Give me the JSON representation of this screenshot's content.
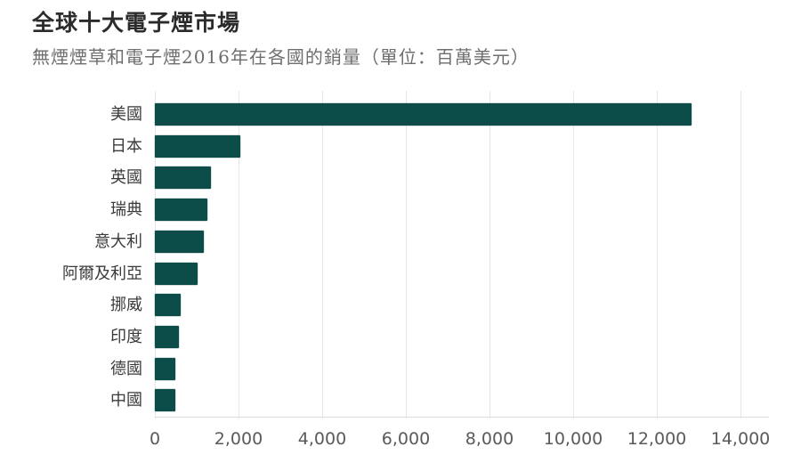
{
  "chart_data": {
    "type": "bar",
    "orientation": "horizontal",
    "title": "全球十大電子煙市場",
    "subtitle": "無煙煙草和電子煙2016年在各國的銷量（單位：百萬美元）",
    "xlabel": "",
    "ylabel": "",
    "xlim": [
      0,
      14500
    ],
    "grid": true,
    "bar_color": "#0c4d4a",
    "categories": [
      "美國",
      "日本",
      "英國",
      "瑞典",
      "意大利",
      "阿爾及利亞",
      "挪威",
      "印度",
      "德國",
      "中國"
    ],
    "values": [
      12830,
      2050,
      1340,
      1260,
      1170,
      1020,
      620,
      570,
      490,
      480
    ],
    "ticks": [
      0,
      2000,
      4000,
      6000,
      8000,
      10000,
      12000,
      14000
    ],
    "tick_labels": [
      "0",
      "2,000",
      "4,000",
      "6,000",
      "8,000",
      "10,000",
      "12,000",
      "14,000"
    ]
  }
}
